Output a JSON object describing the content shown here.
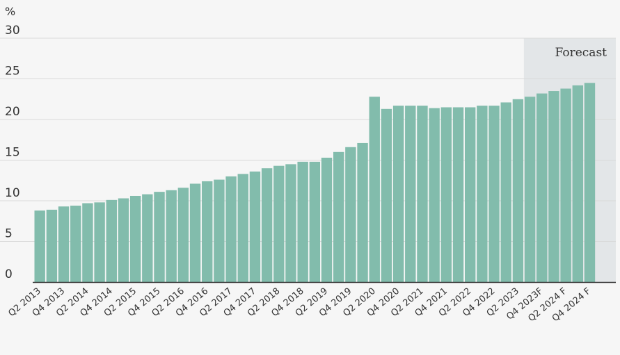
{
  "chart_data": {
    "type": "bar",
    "ylabel": "%",
    "ylim": [
      0,
      30
    ],
    "yticks": [
      0,
      5,
      10,
      15,
      20,
      25,
      30
    ],
    "grid": true,
    "forecast_label": "Forecast",
    "forecast_start_category": "Q3 2023F",
    "colors": {
      "bar": "#82bcac",
      "forecast_band": "#e3e6e8",
      "grid": "#d9d9d9",
      "axis": "#333333",
      "background": "#f6f6f6"
    },
    "categories": [
      "Q2 2013",
      "Q3 2013",
      "Q4 2013",
      "Q1 2014",
      "Q2 2014",
      "Q3 2014",
      "Q4 2014",
      "Q1 2015",
      "Q2 2015",
      "Q3 2015",
      "Q4 2015",
      "Q1 2016",
      "Q2 2016",
      "Q3 2016",
      "Q4 2016",
      "Q1 2017",
      "Q2 2017",
      "Q3 2017",
      "Q4 2017",
      "Q1 2018",
      "Q2 2018",
      "Q3 2018",
      "Q4 2018",
      "Q1 2019",
      "Q2 2019",
      "Q3 2019",
      "Q4 2019",
      "Q1 2020",
      "Q2 2020",
      "Q3 2020",
      "Q4 2020",
      "Q1 2021",
      "Q2 2021",
      "Q3 2021",
      "Q4 2021",
      "Q1 2022",
      "Q2 2022",
      "Q3 2022",
      "Q4 2022",
      "Q1 2023",
      "Q2 2023",
      "Q3 2023F",
      "Q4 2023F",
      "Q1 2024 F",
      "Q2 2024 F",
      "Q3 2024 F",
      "Q4 2024 F"
    ],
    "x_tick_labels": [
      "Q2 2013",
      "Q4 2013",
      "Q2 2014",
      "Q4 2014",
      "Q2 2015",
      "Q4 2015",
      "Q2 2016",
      "Q4 2016",
      "Q2 2017",
      "Q4 2017",
      "Q2 2018",
      "Q4 2018",
      "Q2 2019",
      "Q4 2019",
      "Q2 2020",
      "Q4 2020",
      "Q2 2021",
      "Q4 2021",
      "Q2 2022",
      "Q4 2022",
      "Q2 2023",
      "Q4 2023F",
      "Q2 2024 F",
      "Q4 2024 F"
    ],
    "values": [
      8.8,
      8.9,
      9.3,
      9.4,
      9.7,
      9.8,
      10.1,
      10.3,
      10.6,
      10.8,
      11.1,
      11.3,
      11.6,
      12.1,
      12.4,
      12.6,
      13.0,
      13.3,
      13.6,
      14.0,
      14.3,
      14.5,
      14.8,
      14.8,
      15.3,
      16.0,
      16.6,
      17.1,
      22.8,
      21.3,
      21.7,
      21.7,
      21.7,
      21.4,
      21.5,
      21.5,
      21.5,
      21.7,
      21.7,
      22.1,
      22.5,
      22.8,
      23.2,
      23.5,
      23.8,
      24.2,
      24.5
    ]
  }
}
